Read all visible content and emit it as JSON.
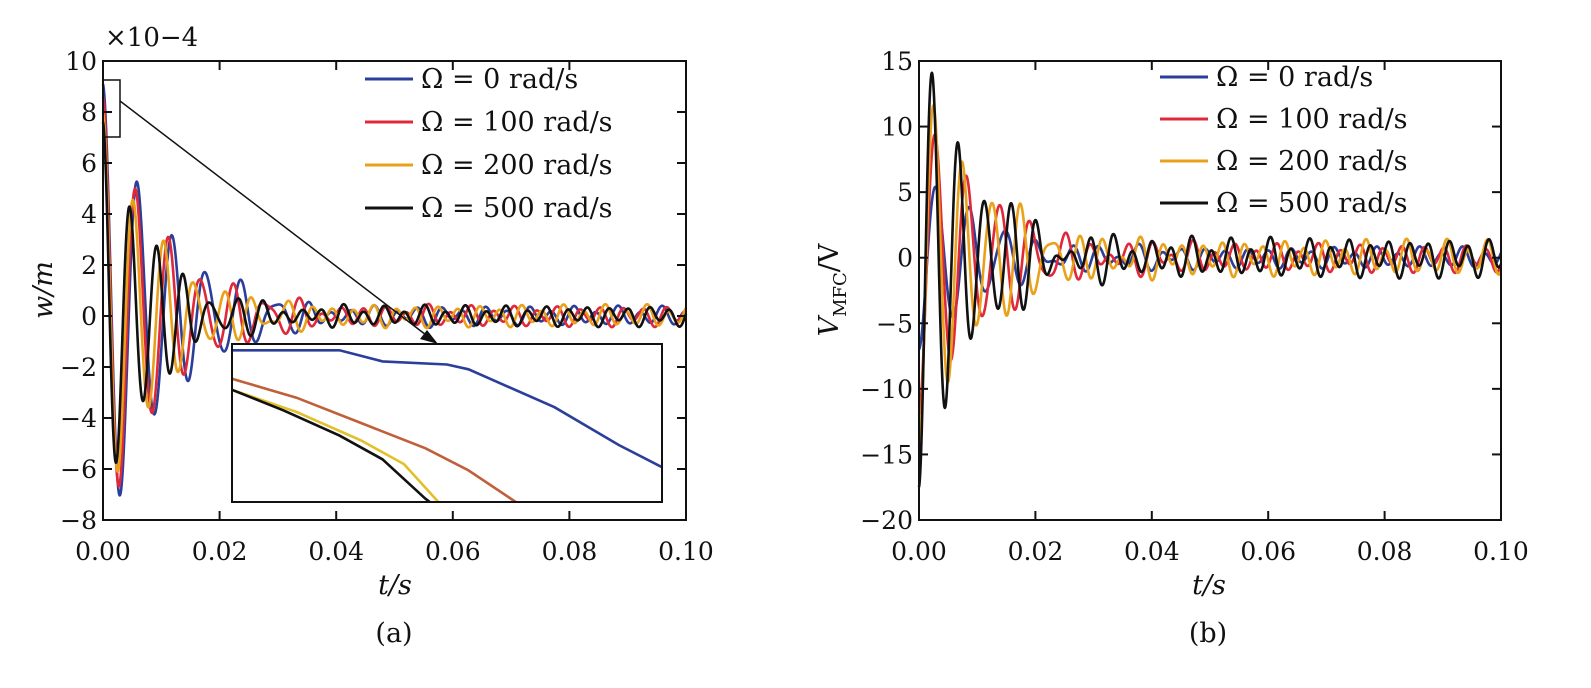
{
  "colors": {
    "omega_0": "#2b3f9a",
    "omega_100": "#e0283b",
    "omega_200": "#e9a11a",
    "omega_500": "#111111",
    "inset_omega_100": "#c0603a",
    "inset_omega_200": "#e1c02a"
  },
  "chart_data": [
    {
      "panel_label": "(a)",
      "type": "line",
      "xlabel": "t/s",
      "ylabel": "w/m",
      "y_multiplier": "×10−4",
      "xlim": [
        0,
        0.1
      ],
      "ylim": [
        -8,
        10
      ],
      "xticks": [
        "0.00",
        "0.02",
        "0.04",
        "0.06",
        "0.08",
        "0.10"
      ],
      "yticks": [
        "−8",
        "−6",
        "−4",
        "−2",
        "0",
        "2",
        "4",
        "6",
        "8",
        "10"
      ],
      "legend_position": "top-right",
      "series": [
        {
          "name": "Ω = 0 rad/s",
          "color_key": "omega_0",
          "amplitude": 9.1,
          "decay_time": 0.011,
          "period": 0.0059,
          "residual": 0.28,
          "residual_period": 0.0038
        },
        {
          "name": "Ω = 100 rad/s",
          "color_key": "omega_100",
          "amplitude": 8.6,
          "decay_time": 0.0105,
          "period": 0.0056,
          "residual": 0.3,
          "residual_period": 0.0037
        },
        {
          "name": "Ω = 200 rad/s",
          "color_key": "omega_200",
          "amplitude": 8.0,
          "decay_time": 0.0095,
          "period": 0.0052,
          "residual": 0.32,
          "residual_period": 0.0036
        },
        {
          "name": "Ω = 500 rad/s",
          "color_key": "omega_500",
          "amplitude": 7.6,
          "decay_time": 0.0085,
          "period": 0.0046,
          "residual": 0.3,
          "residual_period": 0.0035
        }
      ],
      "zoom_box": {
        "x": [
          0.0,
          0.0025
        ],
        "y": [
          7.0,
          9.5
        ]
      },
      "inset": {
        "series": [
          {
            "color_key": "omega_0",
            "points": [
              [
                0,
                0.96
              ],
              [
                0.25,
                0.96
              ],
              [
                0.35,
                0.89
              ],
              [
                0.5,
                0.87
              ],
              [
                0.55,
                0.84
              ],
              [
                0.75,
                0.6
              ],
              [
                0.9,
                0.36
              ],
              [
                1.0,
                0.22
              ]
            ]
          },
          {
            "color_key": "inset_omega_100",
            "points": [
              [
                0,
                0.78
              ],
              [
                0.15,
                0.66
              ],
              [
                0.3,
                0.5
              ],
              [
                0.45,
                0.34
              ],
              [
                0.55,
                0.2
              ],
              [
                0.66,
                0.0
              ]
            ]
          },
          {
            "color_key": "inset_omega_200",
            "points": [
              [
                0,
                0.71
              ],
              [
                0.15,
                0.57
              ],
              [
                0.3,
                0.39
              ],
              [
                0.4,
                0.24
              ],
              [
                0.48,
                0.0
              ]
            ]
          },
          {
            "color_key": "omega_500",
            "points": [
              [
                0,
                0.71
              ],
              [
                0.12,
                0.58
              ],
              [
                0.25,
                0.42
              ],
              [
                0.35,
                0.27
              ],
              [
                0.45,
                0.02
              ],
              [
                0.46,
                0.0
              ]
            ]
          }
        ]
      }
    },
    {
      "panel_label": "(b)",
      "type": "line",
      "xlabel": "t/s",
      "ylabel": "V",
      "ylabel_subscript": "MFC",
      "ylabel_unit": "/V",
      "xlim": [
        0,
        0.1
      ],
      "ylim": [
        -20,
        15
      ],
      "xticks": [
        "0.00",
        "0.02",
        "0.04",
        "0.06",
        "0.08",
        "0.10"
      ],
      "yticks": [
        "−20",
        "−15",
        "−10",
        "−5",
        "0",
        "5",
        "10",
        "15"
      ],
      "legend_position": "top-right",
      "series": [
        {
          "name": "Ω = 0 rad/s",
          "color_key": "omega_0",
          "amplitude": -7.0,
          "decay_time": 0.012,
          "period": 0.0058,
          "residual": 0.6,
          "residual_period": 0.0037
        },
        {
          "name": "Ω = 100 rad/s",
          "color_key": "omega_100",
          "amplitude": -12.0,
          "decay_time": 0.012,
          "period": 0.0055,
          "residual": 0.8,
          "residual_period": 0.0036
        },
        {
          "name": "Ω = 200 rad/s",
          "color_key": "omega_200",
          "amplitude": -14.5,
          "decay_time": 0.011,
          "period": 0.005,
          "residual": 1.0,
          "residual_period": 0.0035
        },
        {
          "name": "Ω = 500 rad/s",
          "color_key": "omega_500",
          "amplitude": -17.5,
          "decay_time": 0.0095,
          "period": 0.0045,
          "residual": 1.1,
          "residual_period": 0.0034
        }
      ]
    }
  ]
}
